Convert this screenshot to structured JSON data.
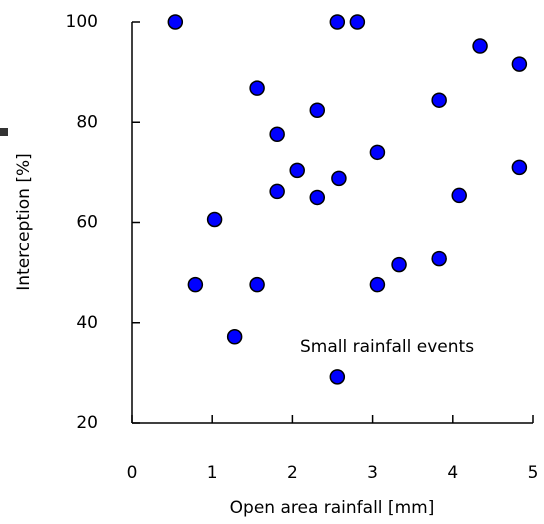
{
  "chart_data": {
    "type": "scatter",
    "x_label": "Open area rainfall [mm]",
    "y_label": "Interception [%]",
    "annotation": "Small rainfall events",
    "color": "#0000ff",
    "x": [
      0.54,
      2.56,
      2.81,
      4.34,
      4.83,
      1.56,
      3.83,
      2.31,
      1.81,
      3.06,
      2.06,
      4.83,
      2.58,
      1.81,
      2.31,
      4.08,
      1.03,
      0.79,
      1.56,
      3.06,
      3.33,
      3.83,
      1.28,
      2.56
    ],
    "values": [
      100,
      100,
      100,
      95.2,
      91.6,
      86.8,
      84.4,
      82.4,
      77.6,
      74,
      70.4,
      71,
      68.8,
      66.2,
      65,
      65.4,
      60.6,
      47.6,
      47.6,
      47.6,
      51.6,
      52.8,
      37.2,
      29.2
    ],
    "xlim": [
      0,
      5
    ],
    "xticks": [
      0,
      1,
      2,
      3,
      4,
      5
    ],
    "ylim": [
      20,
      100
    ],
    "yticks": [
      20,
      40,
      60,
      80,
      100
    ]
  }
}
